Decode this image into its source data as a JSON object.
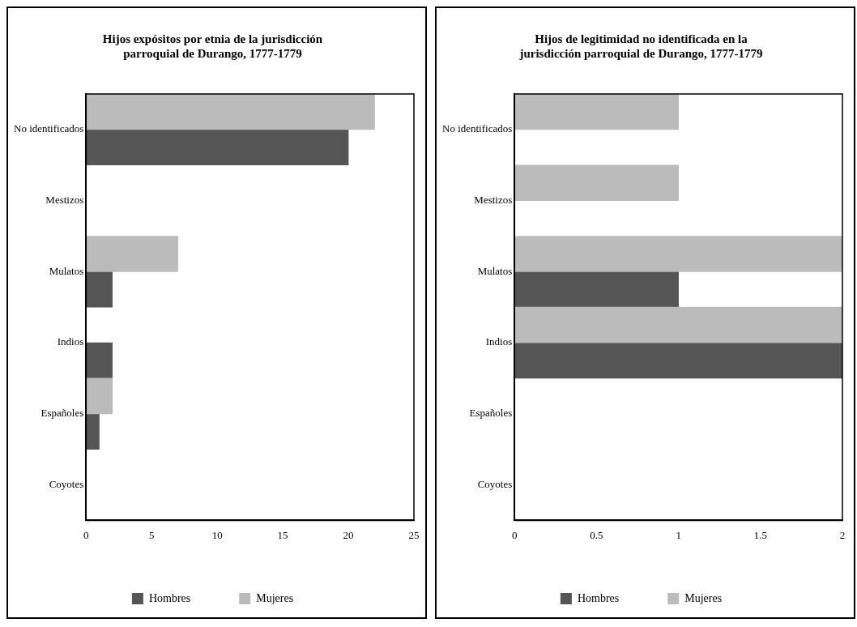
{
  "chart_data": [
    {
      "type": "bar",
      "orientation": "horizontal",
      "title": "Hijos expósitos por etnia de la jurisdicción parroquial de Durango, 1777-1779",
      "categories": [
        "No identificados",
        "Mestizos",
        "Mulatos",
        "Indios",
        "Españoles",
        "Coyotes"
      ],
      "series": [
        {
          "name": "Mujeres",
          "color": "#bbbbbb",
          "values": [
            22,
            0,
            7,
            0,
            2,
            0
          ]
        },
        {
          "name": "Hombres",
          "color": "#555555",
          "values": [
            20,
            0,
            2,
            2,
            1,
            0
          ]
        }
      ],
      "xlim": [
        0,
        25
      ],
      "xticks": [
        0,
        5,
        10,
        15,
        20,
        25
      ],
      "grid": false,
      "legend": "bottom"
    },
    {
      "type": "bar",
      "orientation": "horizontal",
      "title": "Hijos de legitimidad no identificada en la jurisdicción parroquial de Durango, 1777-1779",
      "categories": [
        "No identificados",
        "Mestizos",
        "Mulatos",
        "Indios",
        "Españoles",
        "Coyotes"
      ],
      "series": [
        {
          "name": "Mujeres",
          "color": "#bbbbbb",
          "values": [
            1,
            1,
            2,
            2,
            0,
            0
          ]
        },
        {
          "name": "Hombres",
          "color": "#555555",
          "values": [
            0,
            0,
            1,
            2,
            0,
            0
          ]
        }
      ],
      "xlim": [
        0,
        2
      ],
      "xticks": [
        0,
        0.5,
        1,
        1.5,
        2
      ],
      "grid": false,
      "legend": "bottom"
    }
  ]
}
